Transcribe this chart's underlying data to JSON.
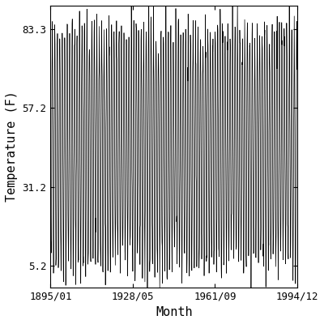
{
  "title": "",
  "xlabel": "Month",
  "ylabel": "Temperature (F)",
  "x_tick_labels": [
    "1895/01",
    "1928/05",
    "1961/09",
    "1994/12"
  ],
  "x_tick_positions": [
    1895.0,
    1928.333,
    1961.667,
    1994.917
  ],
  "y_tick_values": [
    5.2,
    31.2,
    57.2,
    83.3
  ],
  "start_year": 1895,
  "start_month": 1,
  "end_year": 1994,
  "end_month": 12,
  "line_color": "#000000",
  "line_width": 0.5,
  "background_color": "#ffffff",
  "figsize": [
    4.0,
    4.0
  ],
  "dpi": 100,
  "mean_temp": 44.25,
  "amplitude": 39.05,
  "noise_std": 4.5,
  "xlim": [
    1895.0,
    1995.0
  ],
  "ylim": [
    -2.0,
    91.0
  ],
  "font_family": "monospace",
  "font_size_tick": 9,
  "font_size_label": 11
}
